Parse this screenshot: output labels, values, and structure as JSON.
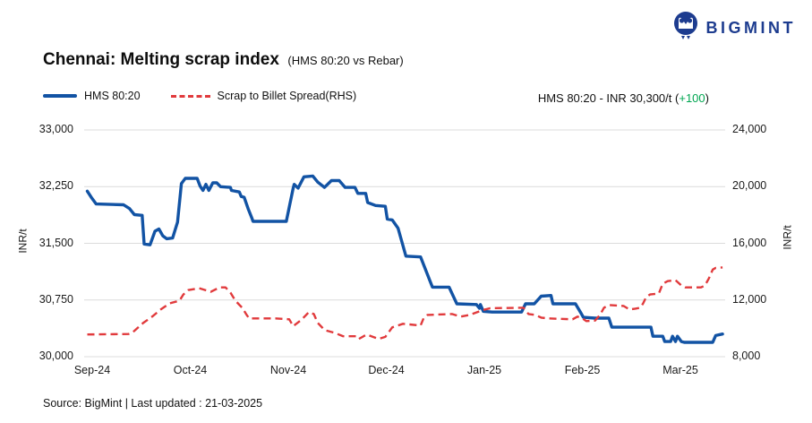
{
  "brand": {
    "logo_text": "BIGMINT",
    "logo_color": "#1d3c8f"
  },
  "header": {
    "title": "Chennai: Melting scrap index",
    "subtitle": "(HMS 80:20 vs Rebar)",
    "price_label": "HMS 80:20 - INR 30,300/t",
    "open_paren": "(",
    "change": "+100",
    "close_paren": ")",
    "change_color": "#00A651"
  },
  "legend": {
    "series1": "HMS 80:20",
    "series2": "Scrap to Billet Spread(RHS)"
  },
  "footer": {
    "source_line": "Source: BigMint | Last updated : 21-03-2025"
  },
  "chart_data": {
    "type": "line",
    "title": "Chennai: Melting scrap index",
    "subtitle": "(HMS 80:20 vs Rebar)",
    "grid": "horizontal-only",
    "grid_color": "#dcdcdc",
    "legend_position": "top-left",
    "x_unit": "months-since-Sep-24-tick",
    "x_ticks": [
      "Sep-24",
      "Oct-24",
      "Nov-24",
      "Dec-24",
      "Jan-25",
      "Feb-25",
      "Mar-25"
    ],
    "left_axis": {
      "label": "INR/t",
      "min": 30000,
      "max": 33000,
      "ticks": [
        "33,000",
        "32,250",
        "31,500",
        "30,750",
        "30,000"
      ]
    },
    "right_axis": {
      "label": "INR/t",
      "min": 8000,
      "max": 24000,
      "ticks": [
        "24,000",
        "20,000",
        "16,000",
        "12,000",
        "8,000"
      ]
    },
    "series": [
      {
        "name": "HMS 80:20",
        "axis": "left",
        "color": "#1253a4",
        "style": "solid",
        "last_value": 30300,
        "points": [
          [
            -0.05,
            32190
          ],
          [
            -0.01,
            32110
          ],
          [
            0.04,
            32020
          ],
          [
            0.32,
            32010
          ],
          [
            0.38,
            31960
          ],
          [
            0.43,
            31880
          ],
          [
            0.51,
            31870
          ],
          [
            0.53,
            31490
          ],
          [
            0.59,
            31480
          ],
          [
            0.64,
            31660
          ],
          [
            0.68,
            31690
          ],
          [
            0.72,
            31600
          ],
          [
            0.76,
            31560
          ],
          [
            0.82,
            31570
          ],
          [
            0.87,
            31780
          ],
          [
            0.91,
            32290
          ],
          [
            0.95,
            32360
          ],
          [
            1.07,
            32360
          ],
          [
            1.1,
            32260
          ],
          [
            1.13,
            32200
          ],
          [
            1.16,
            32280
          ],
          [
            1.19,
            32200
          ],
          [
            1.23,
            32300
          ],
          [
            1.27,
            32300
          ],
          [
            1.31,
            32250
          ],
          [
            1.41,
            32240
          ],
          [
            1.42,
            32200
          ],
          [
            1.5,
            32180
          ],
          [
            1.52,
            32120
          ],
          [
            1.55,
            32110
          ],
          [
            1.59,
            31960
          ],
          [
            1.63,
            31830
          ],
          [
            1.64,
            31790
          ],
          [
            1.98,
            31790
          ],
          [
            2.05,
            32230
          ],
          [
            2.06,
            32280
          ],
          [
            2.1,
            32230
          ],
          [
            2.16,
            32380
          ],
          [
            2.25,
            32390
          ],
          [
            2.3,
            32310
          ],
          [
            2.37,
            32240
          ],
          [
            2.44,
            32330
          ],
          [
            2.52,
            32330
          ],
          [
            2.58,
            32240
          ],
          [
            2.68,
            32240
          ],
          [
            2.71,
            32160
          ],
          [
            2.79,
            32160
          ],
          [
            2.81,
            32040
          ],
          [
            2.89,
            32000
          ],
          [
            2.99,
            31990
          ],
          [
            3.01,
            31820
          ],
          [
            3.06,
            31810
          ],
          [
            3.12,
            31700
          ],
          [
            3.2,
            31330
          ],
          [
            3.35,
            31320
          ],
          [
            3.47,
            30920
          ],
          [
            3.64,
            30920
          ],
          [
            3.72,
            30700
          ],
          [
            3.92,
            30690
          ],
          [
            3.95,
            30640
          ],
          [
            3.96,
            30690
          ],
          [
            3.99,
            30600
          ],
          [
            4.08,
            30590
          ],
          [
            4.38,
            30590
          ],
          [
            4.42,
            30700
          ],
          [
            4.51,
            30700
          ],
          [
            4.58,
            30800
          ],
          [
            4.68,
            30810
          ],
          [
            4.7,
            30700
          ],
          [
            4.93,
            30700
          ],
          [
            4.98,
            30590
          ],
          [
            5.01,
            30520
          ],
          [
            5.13,
            30510
          ],
          [
            5.27,
            30510
          ],
          [
            5.3,
            30390
          ],
          [
            5.7,
            30390
          ],
          [
            5.72,
            30270
          ],
          [
            5.82,
            30270
          ],
          [
            5.84,
            30200
          ],
          [
            5.9,
            30200
          ],
          [
            5.92,
            30270
          ],
          [
            5.95,
            30200
          ],
          [
            5.97,
            30270
          ],
          [
            6.01,
            30200
          ],
          [
            6.04,
            30190
          ],
          [
            6.33,
            30190
          ],
          [
            6.36,
            30280
          ],
          [
            6.43,
            30300
          ]
        ]
      },
      {
        "name": "Scrap to Billet Spread(RHS)",
        "axis": "right",
        "color": "#e13a3c",
        "style": "dashed",
        "points": [
          [
            -0.05,
            9570
          ],
          [
            0.37,
            9600
          ],
          [
            0.41,
            9700
          ],
          [
            0.52,
            10380
          ],
          [
            0.61,
            10820
          ],
          [
            0.7,
            11330
          ],
          [
            0.79,
            11760
          ],
          [
            0.89,
            11950
          ],
          [
            0.93,
            12390
          ],
          [
            0.98,
            12700
          ],
          [
            1.09,
            12830
          ],
          [
            1.21,
            12580
          ],
          [
            1.3,
            12890
          ],
          [
            1.36,
            12890
          ],
          [
            1.41,
            12520
          ],
          [
            1.46,
            11950
          ],
          [
            1.53,
            11450
          ],
          [
            1.57,
            11010
          ],
          [
            1.6,
            10700
          ],
          [
            1.87,
            10700
          ],
          [
            2.01,
            10640
          ],
          [
            2.05,
            10150
          ],
          [
            2.14,
            10640
          ],
          [
            2.21,
            11140
          ],
          [
            2.26,
            11010
          ],
          [
            2.3,
            10390
          ],
          [
            2.37,
            9880
          ],
          [
            2.47,
            9690
          ],
          [
            2.56,
            9440
          ],
          [
            2.7,
            9440
          ],
          [
            2.72,
            9250
          ],
          [
            2.8,
            9560
          ],
          [
            2.92,
            9250
          ],
          [
            2.99,
            9400
          ],
          [
            3.06,
            10070
          ],
          [
            3.17,
            10320
          ],
          [
            3.35,
            10200
          ],
          [
            3.38,
            10700
          ],
          [
            3.42,
            10950
          ],
          [
            3.67,
            11010
          ],
          [
            3.76,
            10830
          ],
          [
            3.85,
            10950
          ],
          [
            3.99,
            11300
          ],
          [
            4.06,
            11420
          ],
          [
            4.4,
            11450
          ],
          [
            4.45,
            11010
          ],
          [
            4.52,
            10950
          ],
          [
            4.58,
            10760
          ],
          [
            4.65,
            10700
          ],
          [
            4.9,
            10640
          ],
          [
            4.95,
            10830
          ],
          [
            5.0,
            10700
          ],
          [
            5.04,
            10510
          ],
          [
            5.13,
            10550
          ],
          [
            5.18,
            10950
          ],
          [
            5.22,
            11450
          ],
          [
            5.27,
            11640
          ],
          [
            5.42,
            11580
          ],
          [
            5.48,
            11330
          ],
          [
            5.54,
            11390
          ],
          [
            5.59,
            11450
          ],
          [
            5.62,
            11760
          ],
          [
            5.65,
            12200
          ],
          [
            5.69,
            12390
          ],
          [
            5.78,
            12460
          ],
          [
            5.82,
            13150
          ],
          [
            5.87,
            13330
          ],
          [
            5.95,
            13400
          ],
          [
            6.01,
            13020
          ],
          [
            6.05,
            12890
          ],
          [
            6.21,
            12890
          ],
          [
            6.25,
            13020
          ],
          [
            6.29,
            13520
          ],
          [
            6.33,
            14150
          ],
          [
            6.36,
            14270
          ],
          [
            6.43,
            14300
          ]
        ]
      }
    ]
  }
}
